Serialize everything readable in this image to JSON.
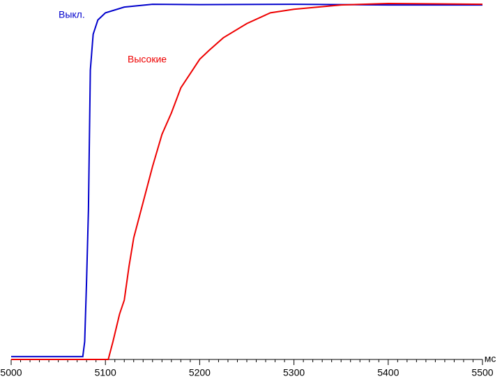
{
  "chart_data": {
    "type": "line",
    "xlabel": "мс",
    "xlim": [
      5000,
      5500
    ],
    "ylim": [
      0,
      100
    ],
    "xticks": [
      5000,
      5100,
      5200,
      5300,
      5400,
      5500
    ],
    "xminorticks": [
      5010,
      5020,
      5030,
      5040,
      5050,
      5060,
      5070,
      5080,
      5090,
      5110,
      5120,
      5130,
      5140,
      5150,
      5160,
      5170,
      5180,
      5190,
      5210,
      5220,
      5230,
      5240,
      5250,
      5260,
      5270,
      5280,
      5290,
      5310,
      5320,
      5330,
      5340,
      5350,
      5360,
      5370,
      5380,
      5390,
      5410,
      5420,
      5430,
      5440,
      5450,
      5460,
      5470,
      5480,
      5490
    ],
    "series": [
      {
        "name": "Выкл.",
        "color": "#0000cc",
        "x": [
          5000,
          5076,
          5078,
          5080,
          5082,
          5084,
          5087,
          5092,
          5100,
          5120,
          5150,
          5200,
          5300,
          5400,
          5500
        ],
        "values": [
          0.8,
          0.8,
          5,
          22,
          42,
          81,
          91,
          95,
          97,
          98.6,
          99.4,
          99.3,
          99.4,
          99.2,
          99.2
        ]
      },
      {
        "name": "Высокие",
        "color": "#ee0000",
        "x": [
          5000,
          5103,
          5108,
          5115,
          5120,
          5125,
          5130,
          5140,
          5150,
          5160,
          5170,
          5180,
          5190,
          5200,
          5210,
          5225,
          5250,
          5275,
          5300,
          5350,
          5400,
          5500
        ],
        "values": [
          0,
          0,
          5,
          12.7,
          16.6,
          26,
          34,
          44,
          54,
          63,
          69,
          76,
          80,
          84,
          86.5,
          90,
          94,
          97,
          98,
          99.2,
          99.6,
          99.4
        ]
      }
    ]
  }
}
